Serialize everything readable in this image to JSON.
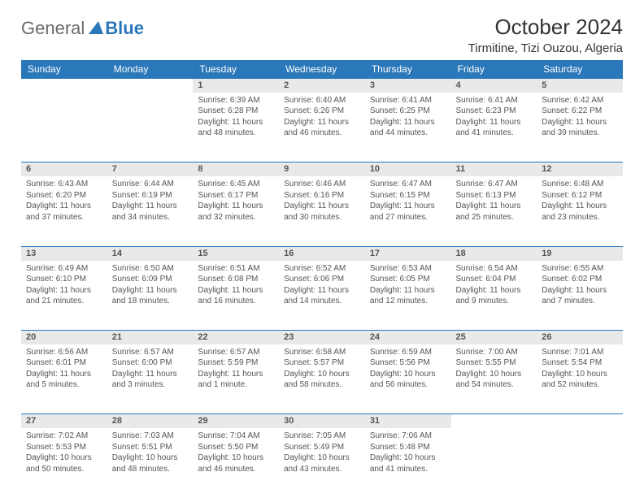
{
  "brand": {
    "part1": "General",
    "part2": "Blue"
  },
  "header": {
    "month": "October 2024",
    "location": "Tirmitine, Tizi Ouzou, Algeria"
  },
  "colors": {
    "accent": "#2a77b9",
    "daynum_bg": "#e9e9e9",
    "text": "#555555",
    "header_text": "#ffffff"
  },
  "dayHeaders": [
    "Sunday",
    "Monday",
    "Tuesday",
    "Wednesday",
    "Thursday",
    "Friday",
    "Saturday"
  ],
  "weeks": [
    [
      null,
      null,
      {
        "n": "1",
        "sr": "Sunrise: 6:39 AM",
        "ss": "Sunset: 6:28 PM",
        "dl": "Daylight: 11 hours and 48 minutes."
      },
      {
        "n": "2",
        "sr": "Sunrise: 6:40 AM",
        "ss": "Sunset: 6:26 PM",
        "dl": "Daylight: 11 hours and 46 minutes."
      },
      {
        "n": "3",
        "sr": "Sunrise: 6:41 AM",
        "ss": "Sunset: 6:25 PM",
        "dl": "Daylight: 11 hours and 44 minutes."
      },
      {
        "n": "4",
        "sr": "Sunrise: 6:41 AM",
        "ss": "Sunset: 6:23 PM",
        "dl": "Daylight: 11 hours and 41 minutes."
      },
      {
        "n": "5",
        "sr": "Sunrise: 6:42 AM",
        "ss": "Sunset: 6:22 PM",
        "dl": "Daylight: 11 hours and 39 minutes."
      }
    ],
    [
      {
        "n": "6",
        "sr": "Sunrise: 6:43 AM",
        "ss": "Sunset: 6:20 PM",
        "dl": "Daylight: 11 hours and 37 minutes."
      },
      {
        "n": "7",
        "sr": "Sunrise: 6:44 AM",
        "ss": "Sunset: 6:19 PM",
        "dl": "Daylight: 11 hours and 34 minutes."
      },
      {
        "n": "8",
        "sr": "Sunrise: 6:45 AM",
        "ss": "Sunset: 6:17 PM",
        "dl": "Daylight: 11 hours and 32 minutes."
      },
      {
        "n": "9",
        "sr": "Sunrise: 6:46 AM",
        "ss": "Sunset: 6:16 PM",
        "dl": "Daylight: 11 hours and 30 minutes."
      },
      {
        "n": "10",
        "sr": "Sunrise: 6:47 AM",
        "ss": "Sunset: 6:15 PM",
        "dl": "Daylight: 11 hours and 27 minutes."
      },
      {
        "n": "11",
        "sr": "Sunrise: 6:47 AM",
        "ss": "Sunset: 6:13 PM",
        "dl": "Daylight: 11 hours and 25 minutes."
      },
      {
        "n": "12",
        "sr": "Sunrise: 6:48 AM",
        "ss": "Sunset: 6:12 PM",
        "dl": "Daylight: 11 hours and 23 minutes."
      }
    ],
    [
      {
        "n": "13",
        "sr": "Sunrise: 6:49 AM",
        "ss": "Sunset: 6:10 PM",
        "dl": "Daylight: 11 hours and 21 minutes."
      },
      {
        "n": "14",
        "sr": "Sunrise: 6:50 AM",
        "ss": "Sunset: 6:09 PM",
        "dl": "Daylight: 11 hours and 18 minutes."
      },
      {
        "n": "15",
        "sr": "Sunrise: 6:51 AM",
        "ss": "Sunset: 6:08 PM",
        "dl": "Daylight: 11 hours and 16 minutes."
      },
      {
        "n": "16",
        "sr": "Sunrise: 6:52 AM",
        "ss": "Sunset: 6:06 PM",
        "dl": "Daylight: 11 hours and 14 minutes."
      },
      {
        "n": "17",
        "sr": "Sunrise: 6:53 AM",
        "ss": "Sunset: 6:05 PM",
        "dl": "Daylight: 11 hours and 12 minutes."
      },
      {
        "n": "18",
        "sr": "Sunrise: 6:54 AM",
        "ss": "Sunset: 6:04 PM",
        "dl": "Daylight: 11 hours and 9 minutes."
      },
      {
        "n": "19",
        "sr": "Sunrise: 6:55 AM",
        "ss": "Sunset: 6:02 PM",
        "dl": "Daylight: 11 hours and 7 minutes."
      }
    ],
    [
      {
        "n": "20",
        "sr": "Sunrise: 6:56 AM",
        "ss": "Sunset: 6:01 PM",
        "dl": "Daylight: 11 hours and 5 minutes."
      },
      {
        "n": "21",
        "sr": "Sunrise: 6:57 AM",
        "ss": "Sunset: 6:00 PM",
        "dl": "Daylight: 11 hours and 3 minutes."
      },
      {
        "n": "22",
        "sr": "Sunrise: 6:57 AM",
        "ss": "Sunset: 5:59 PM",
        "dl": "Daylight: 11 hours and 1 minute."
      },
      {
        "n": "23",
        "sr": "Sunrise: 6:58 AM",
        "ss": "Sunset: 5:57 PM",
        "dl": "Daylight: 10 hours and 58 minutes."
      },
      {
        "n": "24",
        "sr": "Sunrise: 6:59 AM",
        "ss": "Sunset: 5:56 PM",
        "dl": "Daylight: 10 hours and 56 minutes."
      },
      {
        "n": "25",
        "sr": "Sunrise: 7:00 AM",
        "ss": "Sunset: 5:55 PM",
        "dl": "Daylight: 10 hours and 54 minutes."
      },
      {
        "n": "26",
        "sr": "Sunrise: 7:01 AM",
        "ss": "Sunset: 5:54 PM",
        "dl": "Daylight: 10 hours and 52 minutes."
      }
    ],
    [
      {
        "n": "27",
        "sr": "Sunrise: 7:02 AM",
        "ss": "Sunset: 5:53 PM",
        "dl": "Daylight: 10 hours and 50 minutes."
      },
      {
        "n": "28",
        "sr": "Sunrise: 7:03 AM",
        "ss": "Sunset: 5:51 PM",
        "dl": "Daylight: 10 hours and 48 minutes."
      },
      {
        "n": "29",
        "sr": "Sunrise: 7:04 AM",
        "ss": "Sunset: 5:50 PM",
        "dl": "Daylight: 10 hours and 46 minutes."
      },
      {
        "n": "30",
        "sr": "Sunrise: 7:05 AM",
        "ss": "Sunset: 5:49 PM",
        "dl": "Daylight: 10 hours and 43 minutes."
      },
      {
        "n": "31",
        "sr": "Sunrise: 7:06 AM",
        "ss": "Sunset: 5:48 PM",
        "dl": "Daylight: 10 hours and 41 minutes."
      },
      null,
      null
    ]
  ]
}
